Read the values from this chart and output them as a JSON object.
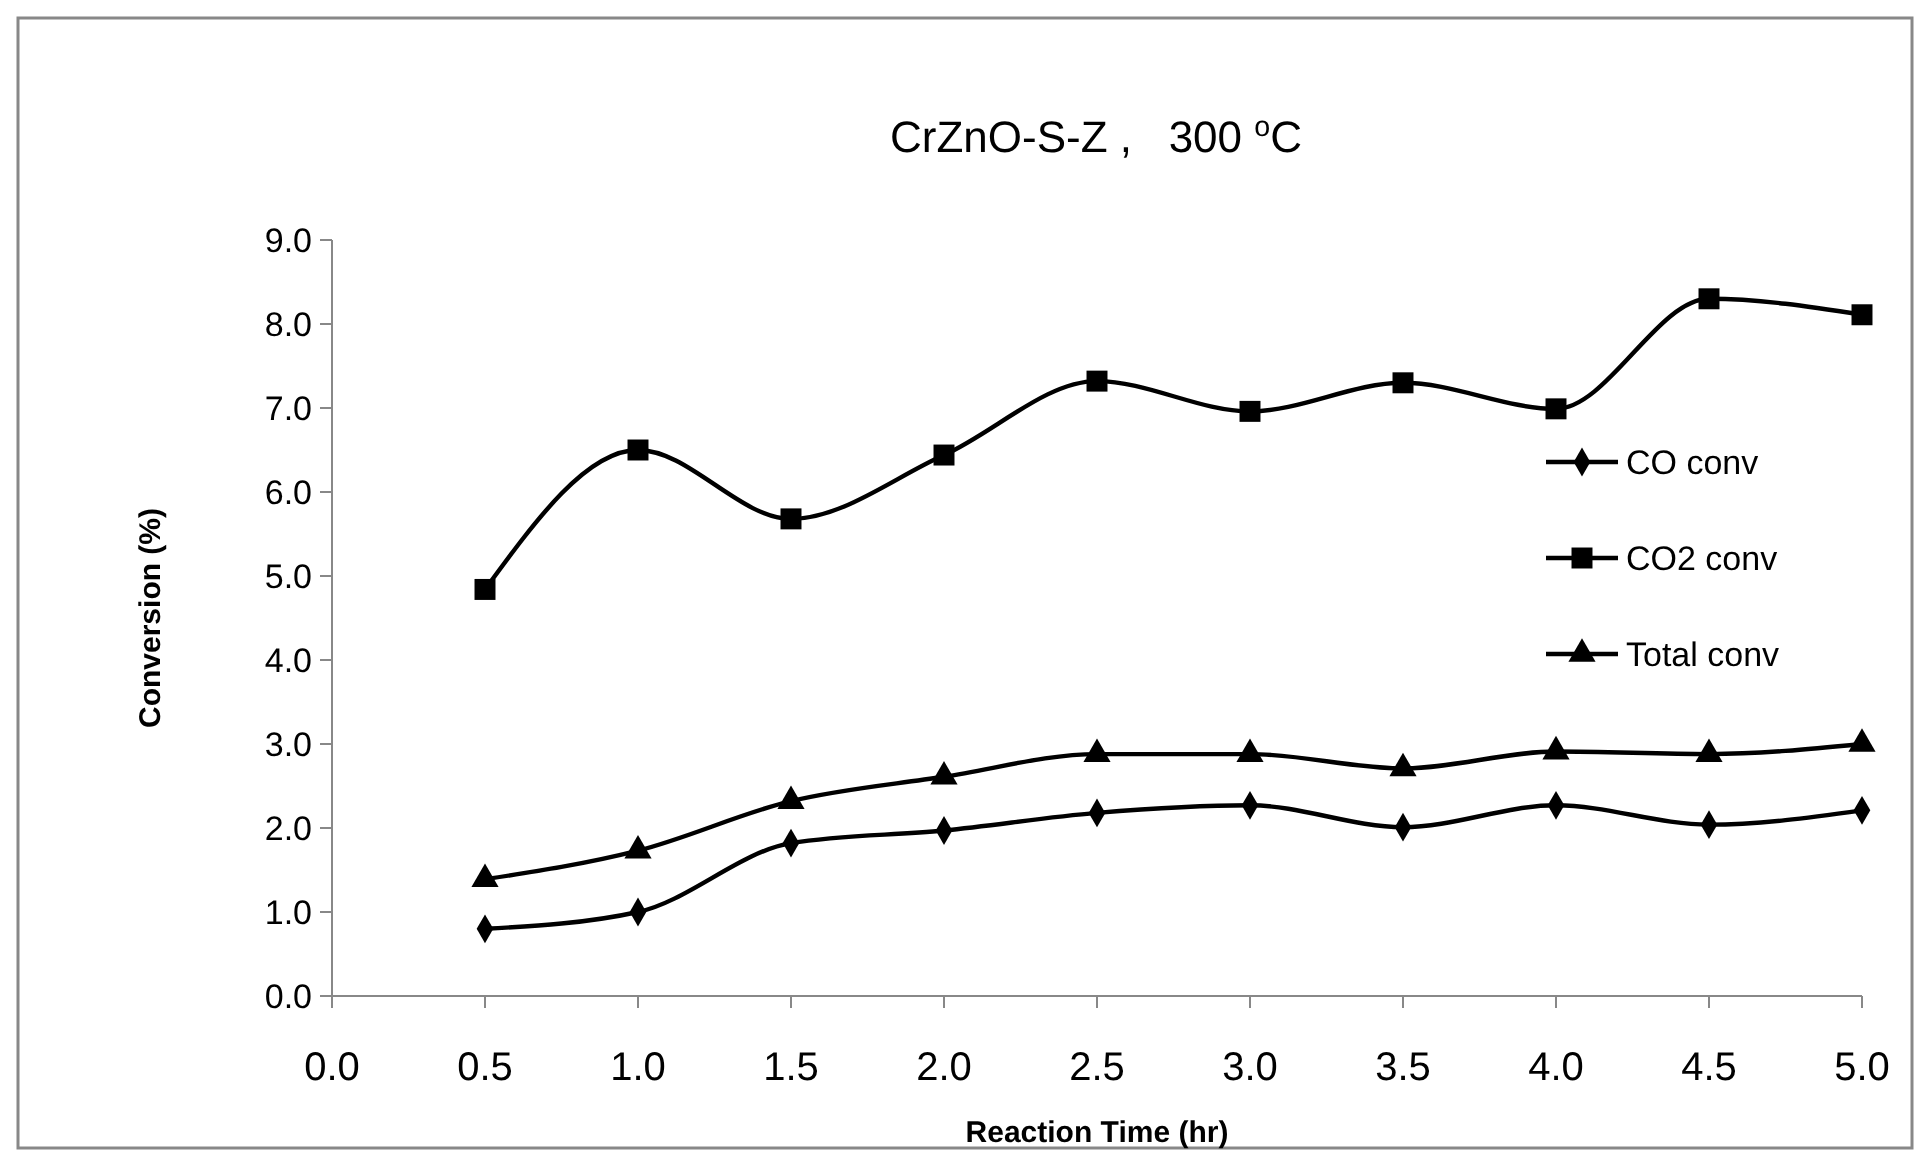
{
  "chart_data": {
    "type": "line",
    "title": "CrZnO-S-Z ,   300 $^{o}$C",
    "xlabel": "Reaction Time (hr)",
    "ylabel": "Conversion (%)",
    "x": [
      0.5,
      1.0,
      1.5,
      2.0,
      2.5,
      3.0,
      3.5,
      4.0,
      4.5,
      5.0
    ],
    "xlim": [
      0,
      5
    ],
    "xticks": [
      {
        "value": 0,
        "label": "0.0"
      },
      {
        "value": 0.5,
        "label": "0.5"
      },
      {
        "value": 1,
        "label": "1.0"
      },
      {
        "value": 1.5,
        "label": "1.5"
      },
      {
        "value": 2,
        "label": "2.0"
      },
      {
        "value": 2.5,
        "label": "2.5"
      },
      {
        "value": 3,
        "label": "3.0"
      },
      {
        "value": 3.5,
        "label": "3.5"
      },
      {
        "value": 4,
        "label": "4.0"
      },
      {
        "value": 4.5,
        "label": "4.5"
      },
      {
        "value": 5,
        "label": "5.0"
      }
    ],
    "ylim": [
      0,
      9
    ],
    "yticks": [
      {
        "value": 0,
        "label": "0.0"
      },
      {
        "value": 1,
        "label": "1.0"
      },
      {
        "value": 2,
        "label": "2.0"
      },
      {
        "value": 3,
        "label": "3.0"
      },
      {
        "value": 4,
        "label": "4.0"
      },
      {
        "value": 5,
        "label": "5.0"
      },
      {
        "value": 6,
        "label": "6.0"
      },
      {
        "value": 7,
        "label": "7.0"
      },
      {
        "value": 8,
        "label": "8.0"
      },
      {
        "value": 9,
        "label": "9.0"
      }
    ],
    "grid": false,
    "legend": "right",
    "line_style": "solid",
    "series": [
      {
        "name": "CO conv",
        "color": "#000000",
        "marker": "diamond",
        "values": [
          0.8,
          1.0,
          1.82,
          1.97,
          2.18,
          2.27,
          2.01,
          2.27,
          2.04,
          2.21
        ]
      },
      {
        "name": "CO2 conv",
        "color": "#000000",
        "marker": "square",
        "values": [
          4.84,
          6.5,
          5.68,
          6.44,
          7.32,
          6.96,
          7.3,
          6.99,
          8.3,
          8.11
        ]
      },
      {
        "name": "Total conv",
        "color": "#000000",
        "marker": "triangle",
        "values": [
          1.39,
          1.73,
          2.32,
          2.61,
          2.88,
          2.88,
          2.71,
          2.91,
          2.88,
          3.0
        ]
      }
    ]
  }
}
